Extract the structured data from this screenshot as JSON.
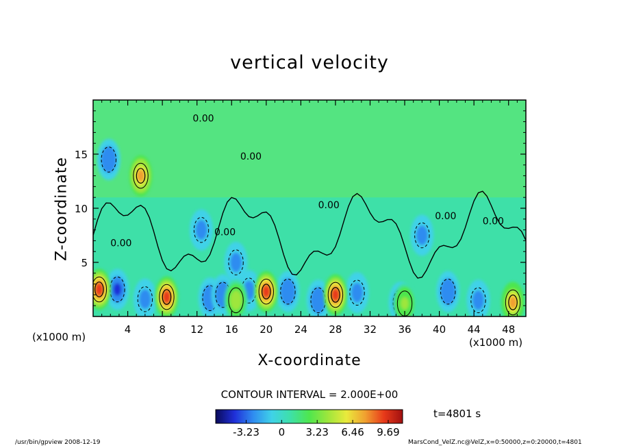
{
  "chart_data": {
    "type": "heatmap",
    "title": "vertical velocity",
    "xlabel": "X-coordinate",
    "ylabel": "Z-coordinate",
    "x_unit_left": "(x1000 m)",
    "x_unit_right": "(x1000 m)",
    "xlim": [
      0,
      50
    ],
    "ylim": [
      0,
      20
    ],
    "xticks": [
      "4",
      "8",
      "12",
      "16",
      "20",
      "24",
      "28",
      "32",
      "36",
      "40",
      "44",
      "48"
    ],
    "xtick_values": [
      4,
      8,
      12,
      16,
      20,
      24,
      28,
      32,
      36,
      40,
      44,
      48
    ],
    "yticks": [
      "5",
      "10",
      "15"
    ],
    "ytick_values": [
      5,
      10,
      15
    ],
    "contour_interval": "CONTOUR INTERVAL = 2.000E+00",
    "contour_label": "0.00",
    "time_label": "t=4801 s",
    "colorbar": {
      "ticks": [
        "-3.23",
        "0",
        "3.23",
        "6.46",
        "9.69"
      ],
      "tick_values": [
        -3.23,
        0,
        3.23,
        6.46,
        9.69
      ],
      "range": [
        -6.0,
        11.0
      ]
    },
    "colormap": [
      "#0a0a5a",
      "#1f2fd8",
      "#2f8cf0",
      "#3fd2e8",
      "#3ee0a8",
      "#4ee64e",
      "#9ee63c",
      "#eaea3c",
      "#f0a030",
      "#e83a1a",
      "#a01010"
    ],
    "updrafts_bottom": [
      {
        "x": 0.7,
        "z": 2.5,
        "value": 9.5
      },
      {
        "x": 8.5,
        "z": 1.8,
        "value": 9.0
      },
      {
        "x": 20.0,
        "z": 2.3,
        "value": 9.69
      },
      {
        "x": 28.0,
        "z": 2.0,
        "value": 8.5
      },
      {
        "x": 48.5,
        "z": 1.3,
        "value": 7.0
      },
      {
        "x": 5.5,
        "z": 13.0,
        "value": 8.0
      },
      {
        "x": 16.5,
        "z": 1.5,
        "value": 5.0
      },
      {
        "x": 36.0,
        "z": 1.2,
        "value": 4.0
      }
    ],
    "downdrafts_bottom": [
      {
        "x": 2.8,
        "z": 2.5,
        "value": -3.5
      },
      {
        "x": 6.0,
        "z": 1.6,
        "value": -2.8
      },
      {
        "x": 13.5,
        "z": 1.7,
        "value": -3.2
      },
      {
        "x": 15.0,
        "z": 2.0,
        "value": -3.0
      },
      {
        "x": 18.0,
        "z": 2.4,
        "value": -2.5
      },
      {
        "x": 22.5,
        "z": 2.3,
        "value": -3.2
      },
      {
        "x": 26.0,
        "z": 1.5,
        "value": -3.0
      },
      {
        "x": 30.5,
        "z": 2.2,
        "value": -2.4
      },
      {
        "x": 35.5,
        "z": 1.3,
        "value": -3.5
      },
      {
        "x": 41.0,
        "z": 2.3,
        "value": -3.2
      },
      {
        "x": 44.5,
        "z": 1.5,
        "value": -2.6
      },
      {
        "x": 1.8,
        "z": 14.5,
        "value": -3.0
      },
      {
        "x": 12.5,
        "z": 8.0,
        "value": -2.5
      },
      {
        "x": 16.5,
        "z": 5.0,
        "value": -2.5
      },
      {
        "x": 38.0,
        "z": 7.5,
        "value": -2.3
      }
    ]
  },
  "footer": {
    "left": "/usr/bin/gpview   2008-12-19",
    "right": "MarsCond_VelZ.nc@VelZ,x=0:50000,z=0:20000,t=4801"
  }
}
